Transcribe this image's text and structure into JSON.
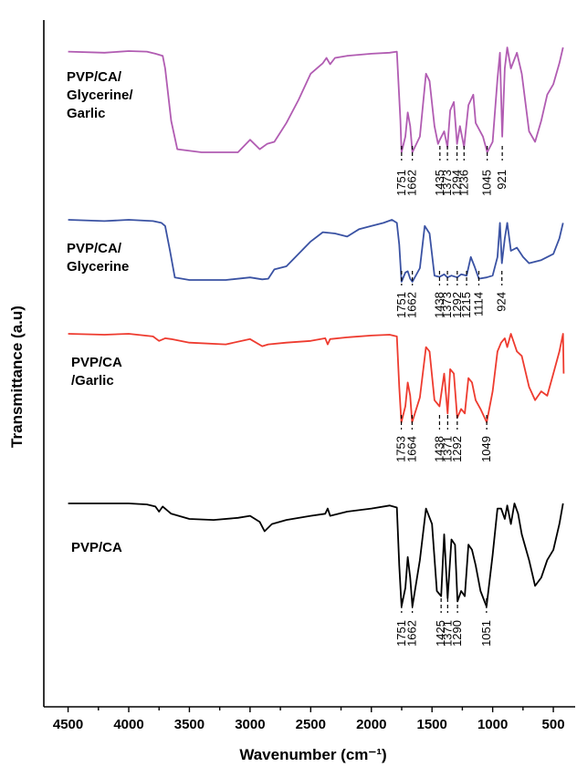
{
  "chart_data": {
    "type": "line",
    "xlabel": "Wavenumber (cm⁻¹)",
    "ylabel": "Transmittance (a.u)",
    "xlim": [
      4700,
      350
    ],
    "x_reversed": true,
    "x_ticks": [
      "4500",
      "4000",
      "3500",
      "3000",
      "2500",
      "2000",
      "1500",
      "1000",
      "500"
    ],
    "grid": false,
    "series": [
      {
        "name": "PVP/CA/ Glycerine/ Garlic",
        "label_lines": [
          "PVP/CA/",
          "Glycerine/",
          "Garlic"
        ],
        "color": "#b15cb2",
        "points": [
          [
            4500,
            0.04
          ],
          [
            4200,
            0.05
          ],
          [
            4000,
            0.035
          ],
          [
            3850,
            0.04
          ],
          [
            3780,
            0.06
          ],
          [
            3720,
            0.08
          ],
          [
            3700,
            0.2
          ],
          [
            3650,
            0.7
          ],
          [
            3600,
            0.97
          ],
          [
            3400,
            1.0
          ],
          [
            3100,
            1.0
          ],
          [
            3000,
            0.88
          ],
          [
            2920,
            0.97
          ],
          [
            2860,
            0.92
          ],
          [
            2800,
            0.9
          ],
          [
            2700,
            0.72
          ],
          [
            2600,
            0.5
          ],
          [
            2500,
            0.25
          ],
          [
            2400,
            0.15
          ],
          [
            2370,
            0.1
          ],
          [
            2340,
            0.16
          ],
          [
            2300,
            0.1
          ],
          [
            2200,
            0.08
          ],
          [
            2000,
            0.06
          ],
          [
            1850,
            0.05
          ],
          [
            1790,
            0.04
          ],
          [
            1760,
            0.7
          ],
          [
            1751,
            1.0
          ],
          [
            1720,
            0.85
          ],
          [
            1700,
            0.62
          ],
          [
            1680,
            0.75
          ],
          [
            1662,
            1.0
          ],
          [
            1600,
            0.85
          ],
          [
            1550,
            0.25
          ],
          [
            1520,
            0.32
          ],
          [
            1480,
            0.75
          ],
          [
            1450,
            0.92
          ],
          [
            1435,
            0.88
          ],
          [
            1400,
            0.8
          ],
          [
            1373,
            0.95
          ],
          [
            1350,
            0.6
          ],
          [
            1320,
            0.52
          ],
          [
            1294,
            0.92
          ],
          [
            1270,
            0.75
          ],
          [
            1236,
            0.95
          ],
          [
            1200,
            0.55
          ],
          [
            1160,
            0.45
          ],
          [
            1140,
            0.72
          ],
          [
            1080,
            0.85
          ],
          [
            1045,
            1.0
          ],
          [
            1000,
            0.9
          ],
          [
            960,
            0.3
          ],
          [
            940,
            0.05
          ],
          [
            921,
            0.85
          ],
          [
            900,
            0.2
          ],
          [
            880,
            0.0
          ],
          [
            850,
            0.2
          ],
          [
            800,
            0.05
          ],
          [
            760,
            0.25
          ],
          [
            700,
            0.8
          ],
          [
            650,
            0.9
          ],
          [
            600,
            0.7
          ],
          [
            550,
            0.45
          ],
          [
            500,
            0.35
          ],
          [
            450,
            0.15
          ],
          [
            420,
            0.0
          ]
        ]
      },
      {
        "name": "PVP/CA/ Glycerine",
        "label_lines": [
          "PVP/CA/",
          "Glycerine"
        ],
        "color": "#3a52a3",
        "points": [
          [
            4500,
            0.0
          ],
          [
            4200,
            0.02
          ],
          [
            4000,
            0.0
          ],
          [
            3800,
            0.02
          ],
          [
            3730,
            0.05
          ],
          [
            3700,
            0.1
          ],
          [
            3660,
            0.5
          ],
          [
            3620,
            0.93
          ],
          [
            3500,
            0.97
          ],
          [
            3200,
            0.97
          ],
          [
            3000,
            0.93
          ],
          [
            2900,
            0.96
          ],
          [
            2850,
            0.95
          ],
          [
            2800,
            0.8
          ],
          [
            2700,
            0.75
          ],
          [
            2600,
            0.55
          ],
          [
            2500,
            0.35
          ],
          [
            2400,
            0.2
          ],
          [
            2300,
            0.22
          ],
          [
            2200,
            0.27
          ],
          [
            2100,
            0.15
          ],
          [
            2000,
            0.1
          ],
          [
            1900,
            0.05
          ],
          [
            1830,
            0.0
          ],
          [
            1790,
            0.05
          ],
          [
            1770,
            0.4
          ],
          [
            1751,
            1.0
          ],
          [
            1720,
            0.85
          ],
          [
            1700,
            0.83
          ],
          [
            1680,
            0.95
          ],
          [
            1662,
            1.0
          ],
          [
            1600,
            0.78
          ],
          [
            1560,
            0.1
          ],
          [
            1520,
            0.22
          ],
          [
            1480,
            0.9
          ],
          [
            1438,
            0.92
          ],
          [
            1400,
            0.88
          ],
          [
            1373,
            0.93
          ],
          [
            1340,
            0.9
          ],
          [
            1292,
            0.93
          ],
          [
            1260,
            0.88
          ],
          [
            1215,
            0.9
          ],
          [
            1180,
            0.6
          ],
          [
            1150,
            0.75
          ],
          [
            1114,
            0.95
          ],
          [
            1050,
            0.93
          ],
          [
            1000,
            0.9
          ],
          [
            960,
            0.6
          ],
          [
            940,
            0.05
          ],
          [
            924,
            0.7
          ],
          [
            900,
            0.3
          ],
          [
            880,
            0.05
          ],
          [
            850,
            0.5
          ],
          [
            800,
            0.45
          ],
          [
            750,
            0.6
          ],
          [
            700,
            0.7
          ],
          [
            600,
            0.65
          ],
          [
            500,
            0.55
          ],
          [
            450,
            0.3
          ],
          [
            420,
            0.05
          ]
        ]
      },
      {
        "name": "PVP/CA /Garlic",
        "label_lines": [
          "PVP/CA",
          "/Garlic"
        ],
        "color": "#ee3b2f",
        "points": [
          [
            4500,
            0.0
          ],
          [
            4200,
            0.01
          ],
          [
            4000,
            0.0
          ],
          [
            3800,
            0.03
          ],
          [
            3750,
            0.08
          ],
          [
            3700,
            0.05
          ],
          [
            3650,
            0.06
          ],
          [
            3500,
            0.1
          ],
          [
            3200,
            0.12
          ],
          [
            3000,
            0.06
          ],
          [
            2900,
            0.14
          ],
          [
            2850,
            0.12
          ],
          [
            2700,
            0.1
          ],
          [
            2500,
            0.08
          ],
          [
            2380,
            0.05
          ],
          [
            2360,
            0.12
          ],
          [
            2340,
            0.06
          ],
          [
            2200,
            0.04
          ],
          [
            2000,
            0.02
          ],
          [
            1850,
            0.01
          ],
          [
            1790,
            0.03
          ],
          [
            1770,
            0.6
          ],
          [
            1753,
            1.0
          ],
          [
            1720,
            0.82
          ],
          [
            1700,
            0.55
          ],
          [
            1680,
            0.7
          ],
          [
            1664,
            1.0
          ],
          [
            1600,
            0.72
          ],
          [
            1550,
            0.15
          ],
          [
            1520,
            0.2
          ],
          [
            1480,
            0.75
          ],
          [
            1438,
            0.82
          ],
          [
            1400,
            0.45
          ],
          [
            1371,
            0.9
          ],
          [
            1350,
            0.4
          ],
          [
            1320,
            0.45
          ],
          [
            1292,
            0.95
          ],
          [
            1260,
            0.85
          ],
          [
            1230,
            0.9
          ],
          [
            1200,
            0.5
          ],
          [
            1170,
            0.55
          ],
          [
            1140,
            0.75
          ],
          [
            1100,
            0.85
          ],
          [
            1049,
            1.0
          ],
          [
            1000,
            0.65
          ],
          [
            960,
            0.2
          ],
          [
            930,
            0.1
          ],
          [
            900,
            0.05
          ],
          [
            880,
            0.15
          ],
          [
            850,
            0.0
          ],
          [
            800,
            0.2
          ],
          [
            760,
            0.25
          ],
          [
            700,
            0.6
          ],
          [
            650,
            0.75
          ],
          [
            600,
            0.65
          ],
          [
            550,
            0.7
          ],
          [
            500,
            0.45
          ],
          [
            450,
            0.2
          ],
          [
            420,
            0.0
          ],
          [
            415,
            0.45
          ]
        ]
      },
      {
        "name": "PVP/CA",
        "label_lines": [
          "PVP/CA"
        ],
        "color": "#000000",
        "points": [
          [
            4500,
            0.0
          ],
          [
            4200,
            0.0
          ],
          [
            4000,
            0.0
          ],
          [
            3850,
            0.01
          ],
          [
            3780,
            0.03
          ],
          [
            3750,
            0.08
          ],
          [
            3720,
            0.03
          ],
          [
            3650,
            0.1
          ],
          [
            3500,
            0.15
          ],
          [
            3300,
            0.16
          ],
          [
            3100,
            0.14
          ],
          [
            3000,
            0.12
          ],
          [
            2920,
            0.18
          ],
          [
            2880,
            0.27
          ],
          [
            2820,
            0.2
          ],
          [
            2700,
            0.16
          ],
          [
            2500,
            0.12
          ],
          [
            2380,
            0.1
          ],
          [
            2360,
            0.05
          ],
          [
            2340,
            0.12
          ],
          [
            2200,
            0.08
          ],
          [
            2000,
            0.05
          ],
          [
            1850,
            0.02
          ],
          [
            1790,
            0.04
          ],
          [
            1770,
            0.6
          ],
          [
            1751,
            1.0
          ],
          [
            1720,
            0.82
          ],
          [
            1700,
            0.52
          ],
          [
            1680,
            0.72
          ],
          [
            1662,
            1.0
          ],
          [
            1600,
            0.55
          ],
          [
            1550,
            0.05
          ],
          [
            1500,
            0.2
          ],
          [
            1460,
            0.85
          ],
          [
            1425,
            0.9
          ],
          [
            1400,
            0.3
          ],
          [
            1371,
            0.92
          ],
          [
            1340,
            0.35
          ],
          [
            1310,
            0.4
          ],
          [
            1290,
            0.95
          ],
          [
            1260,
            0.85
          ],
          [
            1230,
            0.9
          ],
          [
            1200,
            0.4
          ],
          [
            1170,
            0.45
          ],
          [
            1140,
            0.6
          ],
          [
            1100,
            0.85
          ],
          [
            1051,
            1.0
          ],
          [
            1000,
            0.5
          ],
          [
            960,
            0.05
          ],
          [
            930,
            0.05
          ],
          [
            900,
            0.15
          ],
          [
            880,
            0.02
          ],
          [
            850,
            0.2
          ],
          [
            820,
            0.0
          ],
          [
            790,
            0.1
          ],
          [
            760,
            0.3
          ],
          [
            700,
            0.55
          ],
          [
            650,
            0.8
          ],
          [
            600,
            0.72
          ],
          [
            550,
            0.55
          ],
          [
            500,
            0.45
          ],
          [
            450,
            0.2
          ],
          [
            420,
            0.0
          ]
        ]
      }
    ],
    "peak_labels": [
      {
        "series": 0,
        "labels": [
          "1751",
          "1662",
          "1435",
          "1373",
          "1294",
          "1236",
          "1045",
          "921"
        ]
      },
      {
        "series": 1,
        "labels": [
          "1751",
          "1662",
          "1438",
          "1373",
          "1292",
          "1215",
          "1114",
          "924"
        ]
      },
      {
        "series": 2,
        "labels": [
          "1753",
          "1664",
          "1438",
          "1371",
          "1292",
          "1049"
        ]
      },
      {
        "series": 3,
        "labels": [
          "1751",
          "1662",
          "1425",
          "1371",
          "1290",
          "1051"
        ]
      }
    ]
  }
}
